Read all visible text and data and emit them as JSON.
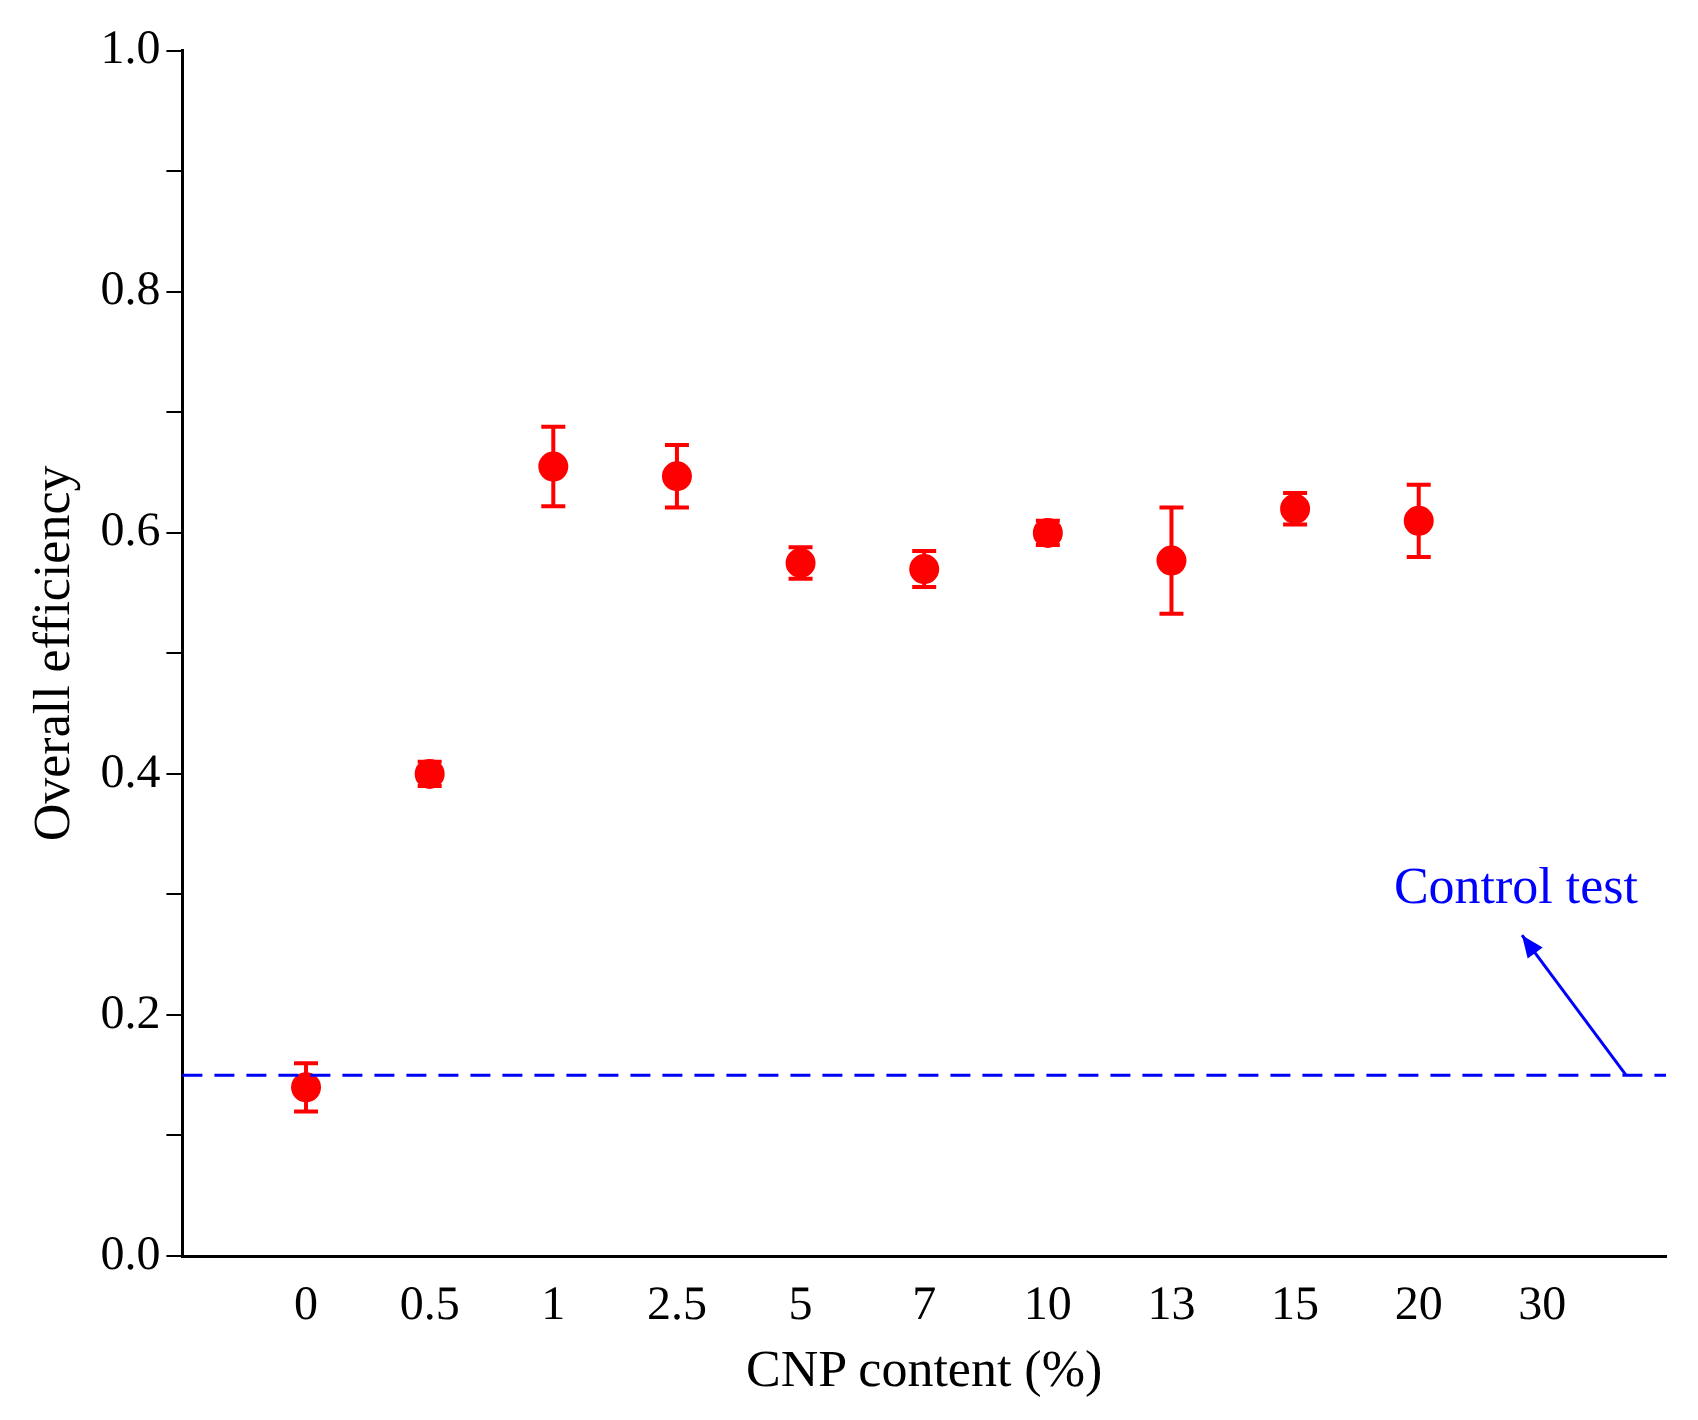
{
  "chart_data": {
    "type": "scatter",
    "xlabel": "CNP content (%)",
    "ylabel": "Overall efficiency",
    "categories": [
      null,
      "0",
      "0.5",
      "1",
      "2.5",
      "5",
      "7",
      "10",
      "13",
      "15",
      "20",
      "30",
      null
    ],
    "series": [
      {
        "color": "#ff0000",
        "values": [
          null,
          0.14,
          0.4,
          0.655,
          0.647,
          0.575,
          0.57,
          0.6,
          0.577,
          0.62,
          0.61,
          null,
          null
        ],
        "errors": [
          null,
          0.02,
          0.01,
          0.033,
          0.026,
          0.013,
          0.015,
          0.01,
          0.044,
          0.013,
          0.03,
          null,
          null
        ]
      }
    ],
    "ylim": [
      0,
      1
    ],
    "yticks": [
      {
        "value": 0,
        "label": "0.0"
      },
      {
        "value": 0.1,
        "label": null
      },
      {
        "value": 0.2,
        "label": "0.2"
      },
      {
        "value": 0.3,
        "label": null
      },
      {
        "value": 0.4,
        "label": "0.4"
      },
      {
        "value": 0.5,
        "label": null
      },
      {
        "value": 0.6,
        "label": "0.6"
      },
      {
        "value": 0.7,
        "label": null
      },
      {
        "value": 0.8,
        "label": "0.8"
      },
      {
        "value": 0.9,
        "label": null
      },
      {
        "value": 1,
        "label": "1.0"
      }
    ],
    "marker": "circle",
    "ref_lines": [
      {
        "axis": "y",
        "value": 0.15,
        "label": "Control test",
        "color": "#0000ff",
        "line_style": "dashed"
      }
    ]
  }
}
